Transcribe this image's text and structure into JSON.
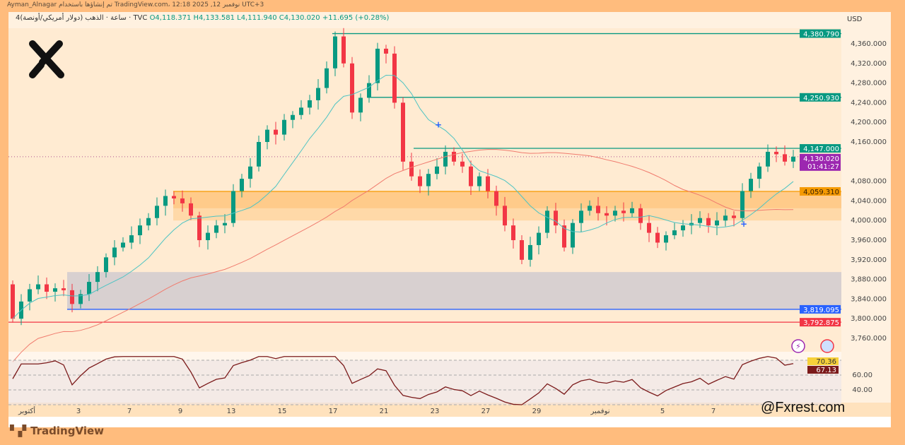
{
  "topbar": {
    "text": "Ayman_Alnagar تم إنشاؤها باستخدام TradingView.com، 12:18 2025 ,12 نوفمبر UTC+3"
  },
  "legend": {
    "symbol": "4ساعة · الذهب (دولار أمريكي/أونصة) · TVC",
    "open": "O4,118.371",
    "high": "H4,133.581",
    "low": "L4,111.940",
    "close": "C4,130.020",
    "change": "+11.695 (+0.28%)"
  },
  "currency": "USD",
  "brand": "TradingView",
  "watermark": "@Fxrest.com",
  "colors": {
    "up": "#089981",
    "down": "#F23645",
    "ma_fast": "#4DC3C3",
    "ma_slow": "#F07B6E",
    "rsi": "#7B1A1A",
    "background": "#FFBC7D"
  },
  "icons": [
    "x-logo-icon",
    "lightning-icon",
    "us-flag-icon",
    "tradingview-logo-icon"
  ],
  "chart_data": {
    "type": "candlestick",
    "ylim": [
      3740,
      4400
    ],
    "yticks": [
      "4,360.000",
      "4,320.000",
      "4,280.000",
      "4,240.000",
      "4,200.000",
      "4,160.000",
      "4,080.000",
      "4,040.000",
      "4,000.000",
      "3,960.000",
      "3,920.000",
      "3,880.000",
      "3,840.000",
      "3,800.000",
      "3,760.000"
    ],
    "ytick_values": [
      4360,
      4320,
      4280,
      4240,
      4200,
      4160,
      4080,
      4040,
      4000,
      3960,
      3920,
      3880,
      3840,
      3800,
      3760
    ],
    "xticks": [
      "أكتوبر",
      "3",
      "7",
      "9",
      "13",
      "15",
      "17",
      "21",
      "23",
      "27",
      "29",
      "نوفمبر",
      "5",
      "7"
    ],
    "levels": [
      {
        "label": "4,380.790",
        "value": 4380.79,
        "color": "#089981"
      },
      {
        "label": "4,250.930",
        "value": 4250.93,
        "color": "#089981"
      },
      {
        "label": "4,147.000",
        "value": 4147.0,
        "color": "#089981"
      },
      {
        "label": "4,059.310",
        "value": 4059.31,
        "color": "#F59A00"
      },
      {
        "label": "3,819.095",
        "value": 3819.095,
        "color": "#2962FF"
      },
      {
        "label": "3,792.875",
        "value": 3792.875,
        "color": "#F23645"
      }
    ],
    "current_price": {
      "label": "4,130.020",
      "countdown": "01:41:27",
      "value": 4130.02,
      "color": "#9C27B0"
    },
    "zones": [
      {
        "from": 4000,
        "to": 4059.31,
        "color": "#FFD9A8"
      },
      {
        "from": 4025,
        "to": 4059.31,
        "color": "#FFCB8A"
      },
      {
        "from": 3819.095,
        "to": 3895,
        "color": "#D8D0D0"
      }
    ],
    "closes": [
      3800,
      3835,
      3860,
      3870,
      3855,
      3862,
      3858,
      3830,
      3850,
      3875,
      3895,
      3925,
      3945,
      3955,
      3970,
      3990,
      4005,
      4030,
      4050,
      4045,
      4035,
      4010,
      3960,
      3975,
      3990,
      3995,
      4060,
      4085,
      4110,
      4160,
      4185,
      4175,
      4205,
      4215,
      4230,
      4245,
      4270,
      4310,
      4375,
      4320,
      4220,
      4250,
      4280,
      4350,
      4340,
      4240,
      4120,
      4090,
      4070,
      4095,
      4110,
      4140,
      4120,
      4110,
      4070,
      4090,
      4060,
      4030,
      3990,
      3960,
      3920,
      3950,
      3975,
      4020,
      3990,
      3945,
      3995,
      4020,
      4030,
      4015,
      4010,
      4020,
      4015,
      4025,
      3995,
      3975,
      3955,
      3970,
      3980,
      3990,
      3995,
      4005,
      3990,
      4000,
      4010,
      4005,
      4060,
      4085,
      4110,
      4140,
      4135,
      4120,
      4130.02
    ],
    "first_open": 3870,
    "rsi": {
      "ticks": [
        "70.36",
        "67.13",
        "60.00",
        "40.00"
      ],
      "levels": [
        80,
        60,
        40,
        20
      ],
      "last_ma": 70.36,
      "last": 67.13
    }
  }
}
